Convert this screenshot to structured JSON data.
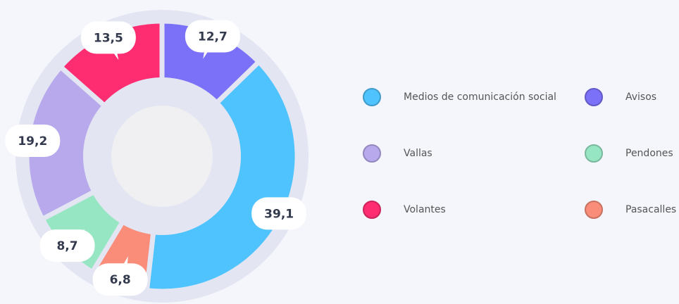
{
  "chart_data": {
    "type": "donut",
    "categories": [
      "Avisos",
      "Medios de comunicación social",
      "Pasacalles",
      "Pendones",
      "Vallas",
      "Volantes"
    ],
    "values": [
      12.7,
      39.1,
      6.8,
      8.7,
      19.2,
      13.5
    ],
    "value_labels": [
      "12,7",
      "39,1",
      "6,8",
      "8,7",
      "19,2",
      "13,5"
    ],
    "colors": [
      "#7b70f8",
      "#4fc3fd",
      "#f98d79",
      "#97e6c3",
      "#b8a9ec",
      "#fe2d72"
    ],
    "legend": "right"
  }
}
